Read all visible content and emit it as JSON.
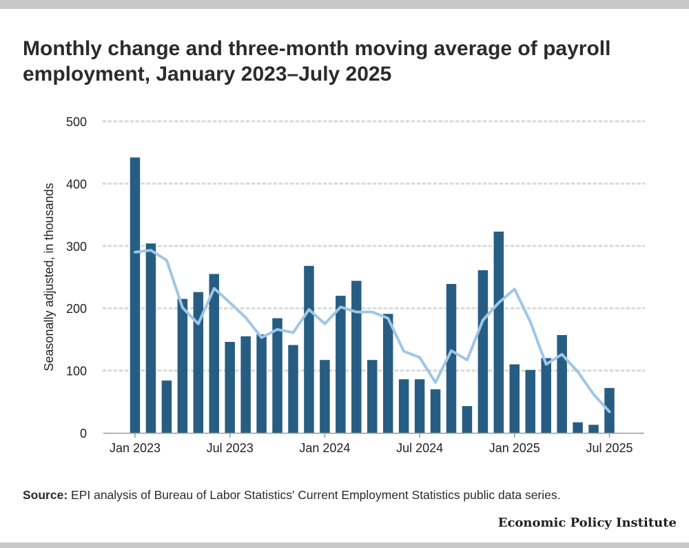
{
  "title": "Monthly change and three-month moving average of payroll employment, January 2023–July 2025",
  "source_label": "Source:",
  "source_text": " EPI analysis of Bureau of Labor Statistics' Current Employment Statistics public data series.",
  "brand": "Economic Policy Institute",
  "colors": {
    "bar": "#275d82",
    "line": "#9fc6e6",
    "grid": "#d9d9d9",
    "axis": "#999999"
  },
  "chart_data": {
    "type": "bar",
    "ylabel": "Seasonally adjusted, in thousands",
    "xlabel": "",
    "ylim": [
      0,
      500
    ],
    "yticks": [
      0,
      100,
      200,
      300,
      400,
      500
    ],
    "grid": true,
    "categories": [
      "2023-01",
      "2023-02",
      "2023-03",
      "2023-04",
      "2023-05",
      "2023-06",
      "2023-07",
      "2023-08",
      "2023-09",
      "2023-10",
      "2023-11",
      "2023-12",
      "2024-01",
      "2024-02",
      "2024-03",
      "2024-04",
      "2024-05",
      "2024-06",
      "2024-07",
      "2024-08",
      "2024-09",
      "2024-10",
      "2024-11",
      "2024-12",
      "2025-01",
      "2025-02",
      "2025-03",
      "2025-04",
      "2025-05",
      "2025-06",
      "2025-07"
    ],
    "xtick_labels": [
      {
        "index": 0,
        "label": "Jan 2023"
      },
      {
        "index": 6,
        "label": "Jul 2023"
      },
      {
        "index": 12,
        "label": "Jan 2024"
      },
      {
        "index": 18,
        "label": "Jul 2024"
      },
      {
        "index": 24,
        "label": "Jan 2025"
      },
      {
        "index": 30,
        "label": "Jul 2025"
      }
    ],
    "series": [
      {
        "kind": "bar",
        "values": [
          442,
          304,
          84,
          215,
          226,
          255,
          146,
          155,
          158,
          184,
          141,
          268,
          117,
          220,
          244,
          117,
          191,
          86,
          86,
          70,
          239,
          43,
          261,
          323,
          110,
          101,
          120,
          157,
          17,
          13,
          72
        ]
      },
      {
        "kind": "line",
        "values": [
          290,
          293,
          277,
          201,
          175,
          232,
          209,
          185,
          153,
          166,
          161,
          198,
          175,
          202,
          194,
          194,
          184,
          131,
          121,
          81,
          132,
          117,
          181,
          209,
          231,
          178,
          110,
          126,
          98,
          62,
          34
        ]
      }
    ]
  }
}
